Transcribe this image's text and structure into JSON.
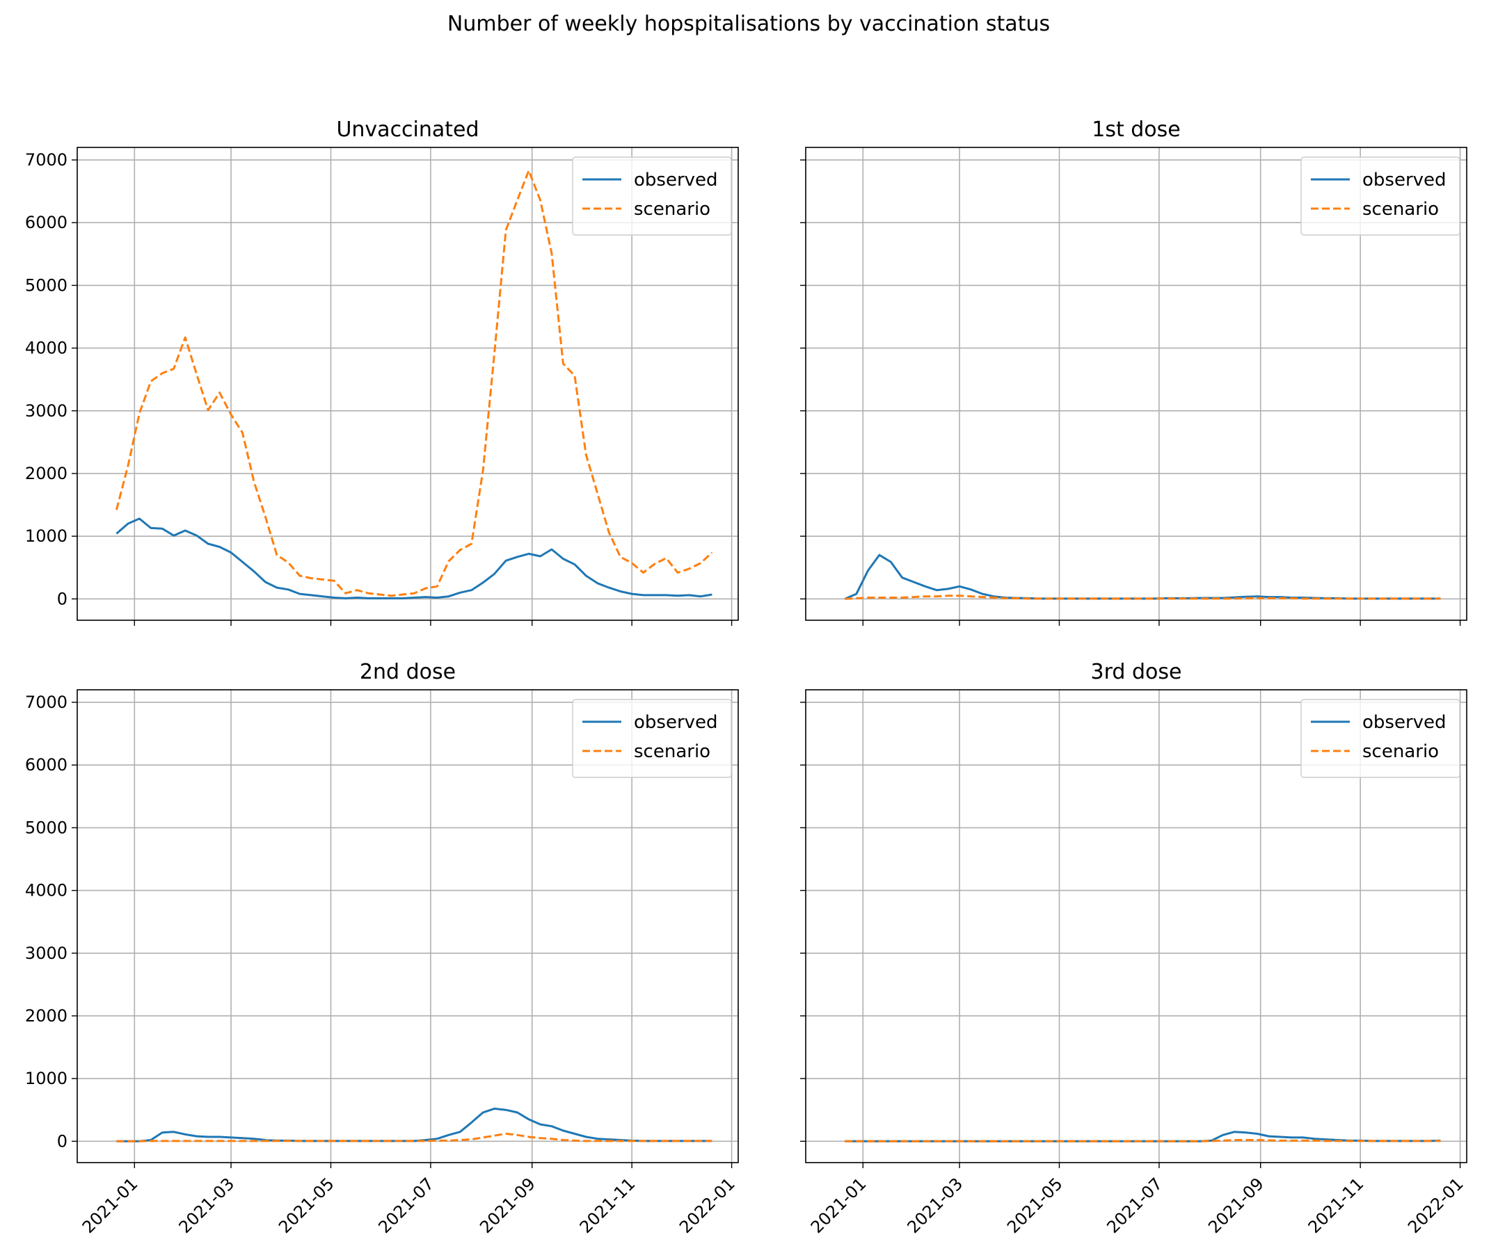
{
  "figure": {
    "title": "Number of weekly hopspitalisations by vaccination status"
  },
  "colors": {
    "observed": "#1f77b4",
    "scenario": "#ff7f0e",
    "grid": "#b0b0b0"
  },
  "chart_data": [
    {
      "type": "line",
      "title": "Unvaccinated",
      "xlabel": "",
      "ylabel": "",
      "ylim": [
        -340,
        7200
      ],
      "xlim": [
        "2020-11-27",
        "2022-01-05"
      ],
      "x_ticks": [
        "2021-01",
        "2021-03",
        "2021-05",
        "2021-07",
        "2021-09",
        "2021-11",
        "2022-01"
      ],
      "y_ticks": [
        0,
        1000,
        2000,
        3000,
        4000,
        5000,
        6000,
        7000
      ],
      "grid": true,
      "legend": "top-right",
      "x_start": "2020-12-21",
      "x_step_days": 7,
      "series": [
        {
          "name": "observed",
          "style": "solid",
          "values": [
            1040,
            1200,
            1280,
            1130,
            1120,
            1010,
            1090,
            1010,
            880,
            830,
            740,
            590,
            440,
            270,
            180,
            150,
            80,
            60,
            40,
            20,
            10,
            20,
            10,
            10,
            10,
            10,
            20,
            30,
            20,
            40,
            100,
            140,
            260,
            400,
            610,
            670,
            720,
            680,
            790,
            640,
            550,
            370,
            250,
            180,
            120,
            80,
            60,
            60,
            60,
            50,
            60,
            40,
            70
          ]
        },
        {
          "name": "scenario",
          "style": "dashed",
          "values": [
            1420,
            2120,
            2960,
            3470,
            3600,
            3670,
            4170,
            3580,
            3010,
            3290,
            2940,
            2650,
            1870,
            1310,
            700,
            580,
            370,
            330,
            310,
            290,
            90,
            140,
            90,
            70,
            50,
            70,
            90,
            170,
            200,
            600,
            780,
            880,
            2050,
            3920,
            5880,
            6360,
            6830,
            6360,
            5510,
            3750,
            3560,
            2300,
            1680,
            1060,
            670,
            570,
            420,
            560,
            650,
            420,
            480,
            570,
            740
          ]
        }
      ]
    },
    {
      "type": "line",
      "title": "1st dose",
      "xlabel": "",
      "ylabel": "",
      "ylim": [
        -340,
        7200
      ],
      "xlim": [
        "2020-11-27",
        "2022-01-05"
      ],
      "x_ticks": [
        "2021-01",
        "2021-03",
        "2021-05",
        "2021-07",
        "2021-09",
        "2021-11",
        "2022-01"
      ],
      "y_ticks": [
        0,
        1000,
        2000,
        3000,
        4000,
        5000,
        6000,
        7000
      ],
      "grid": true,
      "legend": "top-right",
      "x_start": "2020-12-21",
      "x_step_days": 7,
      "series": [
        {
          "name": "observed",
          "style": "solid",
          "values": [
            0,
            80,
            450,
            700,
            590,
            340,
            270,
            200,
            140,
            160,
            200,
            150,
            80,
            40,
            20,
            15,
            10,
            5,
            5,
            5,
            5,
            5,
            5,
            5,
            5,
            5,
            5,
            5,
            10,
            10,
            10,
            15,
            15,
            15,
            25,
            35,
            40,
            30,
            30,
            20,
            20,
            15,
            10,
            10,
            5,
            5,
            5,
            5,
            5,
            5,
            5,
            5,
            5
          ]
        },
        {
          "name": "scenario",
          "style": "dashed",
          "values": [
            0,
            10,
            20,
            20,
            20,
            20,
            30,
            40,
            40,
            50,
            50,
            40,
            30,
            20,
            10,
            10,
            5,
            5,
            5,
            5,
            5,
            5,
            5,
            5,
            5,
            5,
            5,
            5,
            5,
            5,
            5,
            5,
            5,
            5,
            5,
            10,
            10,
            10,
            10,
            10,
            5,
            5,
            5,
            5,
            5,
            5,
            5,
            5,
            5,
            5,
            5,
            5,
            5
          ]
        }
      ]
    },
    {
      "type": "line",
      "title": "2nd dose",
      "xlabel": "",
      "ylabel": "",
      "ylim": [
        -340,
        7200
      ],
      "xlim": [
        "2020-11-27",
        "2022-01-05"
      ],
      "x_ticks": [
        "2021-01",
        "2021-03",
        "2021-05",
        "2021-07",
        "2021-09",
        "2021-11",
        "2022-01"
      ],
      "y_ticks": [
        0,
        1000,
        2000,
        3000,
        4000,
        5000,
        6000,
        7000
      ],
      "grid": true,
      "legend": "top-right",
      "x_start": "2020-12-21",
      "x_step_days": 7,
      "series": [
        {
          "name": "observed",
          "style": "solid",
          "values": [
            0,
            0,
            0,
            20,
            140,
            150,
            110,
            80,
            70,
            70,
            60,
            50,
            40,
            20,
            10,
            10,
            5,
            5,
            5,
            5,
            5,
            5,
            5,
            5,
            5,
            5,
            5,
            20,
            40,
            100,
            150,
            300,
            460,
            520,
            500,
            460,
            350,
            270,
            240,
            170,
            120,
            70,
            40,
            30,
            20,
            10,
            5,
            5,
            5,
            5,
            5,
            5,
            5
          ]
        },
        {
          "name": "scenario",
          "style": "dashed",
          "values": [
            0,
            0,
            0,
            5,
            5,
            5,
            5,
            5,
            5,
            5,
            5,
            5,
            5,
            5,
            5,
            5,
            5,
            5,
            5,
            5,
            5,
            5,
            5,
            5,
            5,
            5,
            5,
            5,
            10,
            10,
            20,
            30,
            60,
            90,
            120,
            100,
            70,
            50,
            40,
            20,
            10,
            5,
            5,
            5,
            5,
            5,
            5,
            5,
            5,
            5,
            5,
            5,
            5
          ]
        }
      ]
    },
    {
      "type": "line",
      "title": "3rd dose",
      "xlabel": "",
      "ylabel": "",
      "ylim": [
        -340,
        7200
      ],
      "xlim": [
        "2020-11-27",
        "2022-01-05"
      ],
      "x_ticks": [
        "2021-01",
        "2021-03",
        "2021-05",
        "2021-07",
        "2021-09",
        "2021-11",
        "2022-01"
      ],
      "y_ticks": [
        0,
        1000,
        2000,
        3000,
        4000,
        5000,
        6000,
        7000
      ],
      "grid": true,
      "legend": "top-right",
      "x_start": "2020-12-21",
      "x_step_days": 7,
      "series": [
        {
          "name": "observed",
          "style": "solid",
          "values": [
            0,
            0,
            0,
            0,
            0,
            0,
            0,
            0,
            0,
            0,
            0,
            0,
            0,
            0,
            0,
            0,
            0,
            0,
            0,
            0,
            0,
            0,
            0,
            0,
            0,
            0,
            0,
            0,
            0,
            0,
            0,
            0,
            10,
            100,
            150,
            140,
            120,
            80,
            70,
            60,
            60,
            40,
            30,
            20,
            10,
            10,
            5,
            5,
            5,
            5,
            5,
            5,
            10
          ]
        },
        {
          "name": "scenario",
          "style": "dashed",
          "values": [
            0,
            0,
            0,
            0,
            0,
            0,
            0,
            0,
            0,
            0,
            0,
            0,
            0,
            0,
            0,
            0,
            0,
            0,
            0,
            0,
            0,
            0,
            0,
            0,
            0,
            0,
            0,
            0,
            0,
            0,
            0,
            0,
            5,
            10,
            20,
            20,
            20,
            15,
            10,
            10,
            10,
            10,
            5,
            5,
            5,
            5,
            5,
            5,
            5,
            5,
            5,
            5,
            5
          ]
        }
      ]
    }
  ]
}
